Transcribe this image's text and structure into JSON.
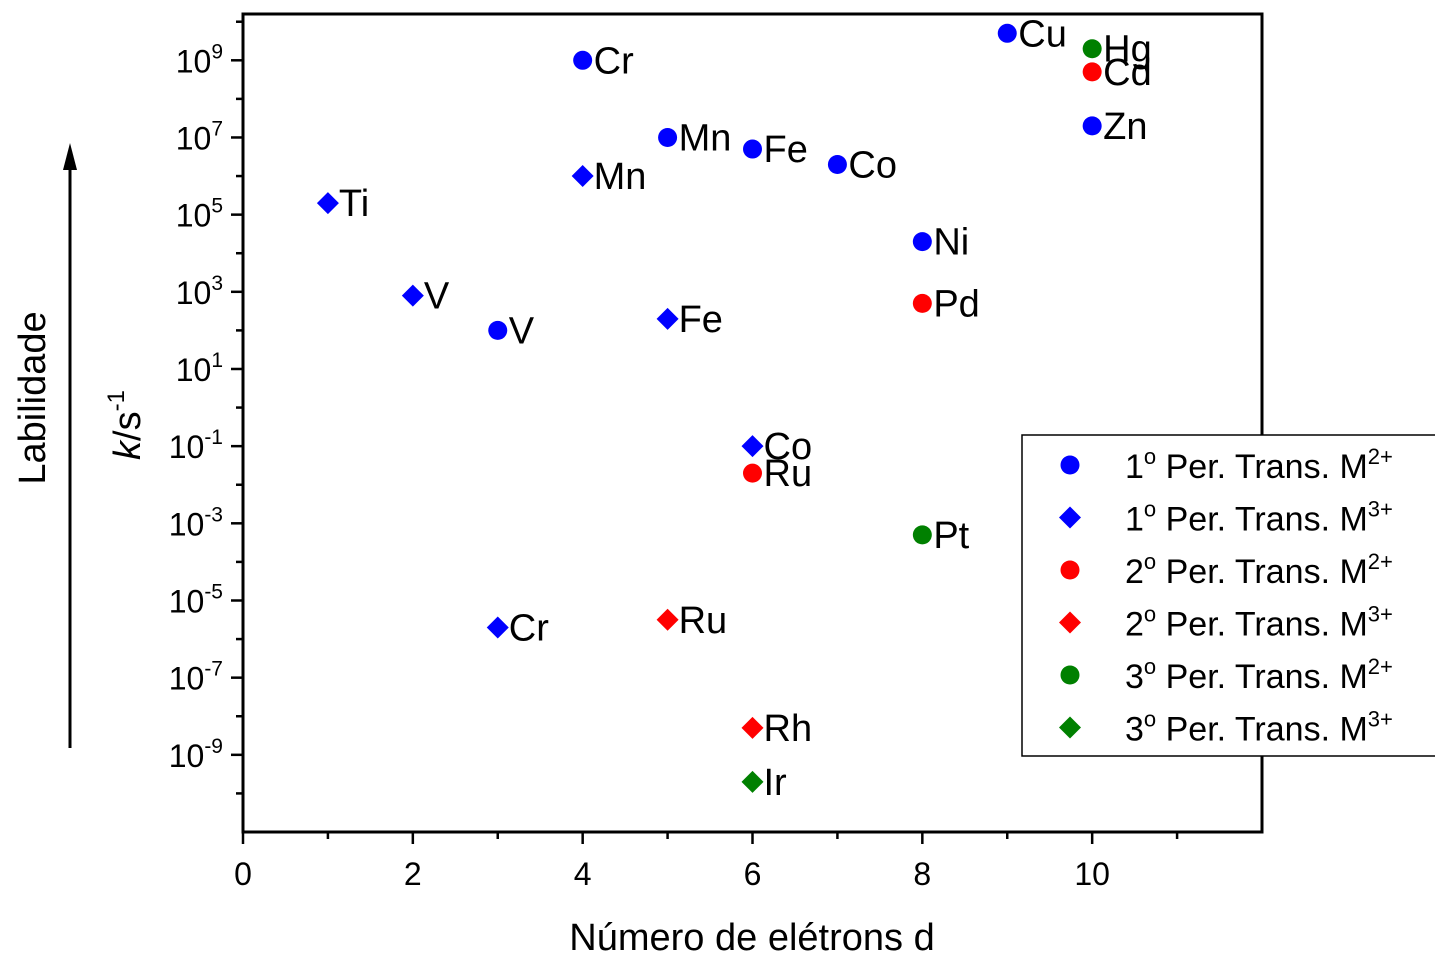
{
  "chart_data": {
    "type": "scatter",
    "xlabel": "Número de elétrons d",
    "ylabel_main": "k",
    "ylabel_unit": "/s",
    "ylabel_exp": "-1",
    "side_label": "Labilidade",
    "y_scale": "log",
    "xlim": [
      0,
      12
    ],
    "ylim_exp": [
      -11,
      10.2
    ],
    "x_ticks": [
      0,
      2,
      4,
      6,
      8,
      10
    ],
    "y_tick_labels": [
      {
        "exp": 9,
        "base": "10",
        "sup": "9"
      },
      {
        "exp": 7,
        "base": "10",
        "sup": "7"
      },
      {
        "exp": 5,
        "base": "10",
        "sup": "5"
      },
      {
        "exp": 3,
        "base": "10",
        "sup": "3"
      },
      {
        "exp": 1,
        "base": "10",
        "sup": "1"
      },
      {
        "exp": -1,
        "base": "10",
        "sup": "-1"
      },
      {
        "exp": -3,
        "base": "10",
        "sup": "-3"
      },
      {
        "exp": -5,
        "base": "10",
        "sup": "-5"
      },
      {
        "exp": -7,
        "base": "10",
        "sup": "-7"
      },
      {
        "exp": -9,
        "base": "10",
        "sup": "-9"
      }
    ],
    "grid": false,
    "legend_position": "right",
    "series": [
      {
        "name": "1º Per. Trans. M2+",
        "legend_text": "1",
        "legend_sup_o": "o",
        "legend_mid": " Per. Trans. M",
        "legend_sup_charge": "2+",
        "marker": "circle",
        "color": "#0000ff",
        "points": [
          {
            "x": 4,
            "log_y": 9.0,
            "label": "Cr"
          },
          {
            "x": 5,
            "log_y": 7.0,
            "label": "Mn"
          },
          {
            "x": 6,
            "log_y": 6.7,
            "label": "Fe"
          },
          {
            "x": 7,
            "log_y": 6.3,
            "label": "Co"
          },
          {
            "x": 8,
            "log_y": 4.3,
            "label": "Ni"
          },
          {
            "x": 9,
            "log_y": 9.7,
            "label": "Cu"
          },
          {
            "x": 10,
            "log_y": 7.3,
            "label": "Zn"
          },
          {
            "x": 3,
            "log_y": 2.0,
            "label": "V"
          }
        ]
      },
      {
        "name": "1º Per. Trans. M3+",
        "legend_text": "1",
        "legend_sup_o": "o",
        "legend_mid": " Per. Trans. M",
        "legend_sup_charge": "3+",
        "marker": "diamond",
        "color": "#0000ff",
        "points": [
          {
            "x": 1,
            "log_y": 5.3,
            "label": "Ti"
          },
          {
            "x": 2,
            "log_y": 2.9,
            "label": "V"
          },
          {
            "x": 4,
            "log_y": 6.0,
            "label": "Mn"
          },
          {
            "x": 5,
            "log_y": 2.3,
            "label": "Fe"
          },
          {
            "x": 6,
            "log_y": -1.0,
            "label": "Co"
          },
          {
            "x": 3,
            "log_y": -5.7,
            "label": "Cr"
          }
        ]
      },
      {
        "name": "2º Per. Trans. M2+",
        "legend_text": "2",
        "legend_sup_o": "o",
        "legend_mid": " Per. Trans. M",
        "legend_sup_charge": "2+",
        "marker": "circle",
        "color": "#ff0000",
        "points": [
          {
            "x": 10,
            "log_y": 8.7,
            "label": "Cd"
          },
          {
            "x": 8,
            "log_y": 2.7,
            "label": "Pd"
          },
          {
            "x": 6,
            "log_y": -1.7,
            "label": "Ru"
          }
        ]
      },
      {
        "name": "2º Per. Trans. M3+",
        "legend_text": "2",
        "legend_sup_o": "o",
        "legend_mid": " Per. Trans. M",
        "legend_sup_charge": "3+",
        "marker": "diamond",
        "color": "#ff0000",
        "points": [
          {
            "x": 5,
            "log_y": -5.5,
            "label": "Ru"
          },
          {
            "x": 6,
            "log_y": -8.3,
            "label": "Rh"
          }
        ]
      },
      {
        "name": "3º Per. Trans. M2+",
        "legend_text": "3",
        "legend_sup_o": "o",
        "legend_mid": " Per. Trans. M",
        "legend_sup_charge": "2+",
        "marker": "circle",
        "color": "#008000",
        "points": [
          {
            "x": 10,
            "log_y": 9.3,
            "label": "Hg"
          },
          {
            "x": 8,
            "log_y": -3.3,
            "label": "Pt"
          }
        ]
      },
      {
        "name": "3º Per. Trans. M3+",
        "legend_text": "3",
        "legend_sup_o": "o",
        "legend_mid": " Per. Trans. M",
        "legend_sup_charge": "3+",
        "marker": "diamond",
        "color": "#008000",
        "points": [
          {
            "x": 6,
            "log_y": -9.7,
            "label": "Ir"
          }
        ]
      }
    ]
  }
}
